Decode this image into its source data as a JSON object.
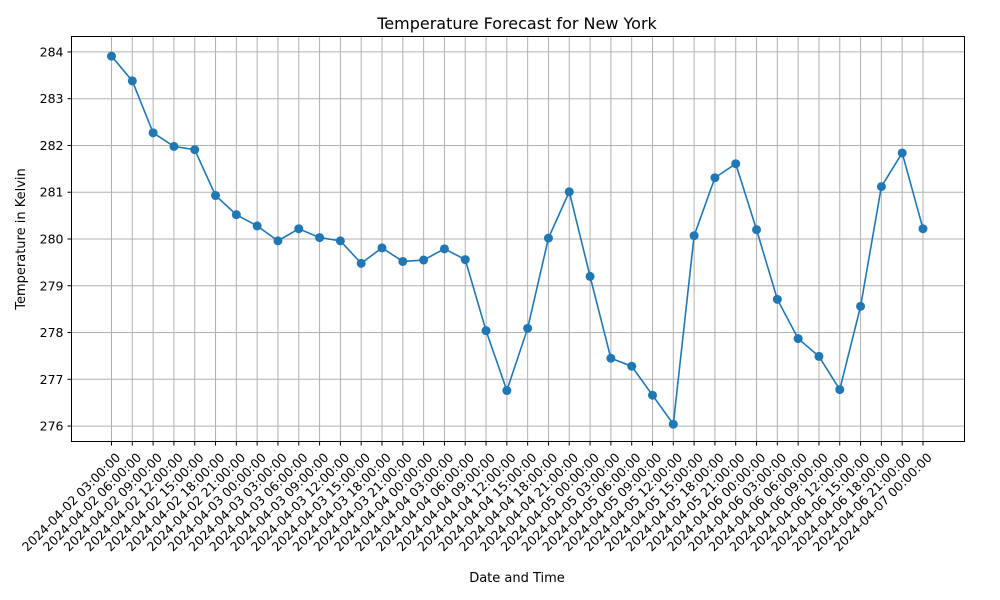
{
  "chart_data": {
    "type": "line",
    "title": "Temperature Forecast for New York",
    "xlabel": "Date and Time",
    "ylabel": "Temperature in Kelvin",
    "ylim": [
      275.67,
      284.33
    ],
    "yticks": [
      276,
      277,
      278,
      279,
      280,
      281,
      282,
      283,
      284
    ],
    "grid": true,
    "marker": "circle",
    "color": "#1f77b4",
    "categories": [
      "2024-04-02 03:00:00",
      "2024-04-02 06:00:00",
      "2024-04-02 09:00:00",
      "2024-04-02 12:00:00",
      "2024-04-02 15:00:00",
      "2024-04-02 18:00:00",
      "2024-04-02 21:00:00",
      "2024-04-03 00:00:00",
      "2024-04-03 03:00:00",
      "2024-04-03 06:00:00",
      "2024-04-03 09:00:00",
      "2024-04-03 12:00:00",
      "2024-04-03 15:00:00",
      "2024-04-03 18:00:00",
      "2024-04-03 21:00:00",
      "2024-04-04 00:00:00",
      "2024-04-04 03:00:00",
      "2024-04-04 06:00:00",
      "2024-04-04 09:00:00",
      "2024-04-04 12:00:00",
      "2024-04-04 15:00:00",
      "2024-04-04 18:00:00",
      "2024-04-04 21:00:00",
      "2024-04-05 00:00:00",
      "2024-04-05 03:00:00",
      "2024-04-05 06:00:00",
      "2024-04-05 09:00:00",
      "2024-04-05 12:00:00",
      "2024-04-05 15:00:00",
      "2024-04-05 18:00:00",
      "2024-04-05 21:00:00",
      "2024-04-06 00:00:00",
      "2024-04-06 03:00:00",
      "2024-04-06 06:00:00",
      "2024-04-06 09:00:00",
      "2024-04-06 12:00:00",
      "2024-04-06 15:00:00",
      "2024-04-06 18:00:00",
      "2024-04-06 21:00:00",
      "2024-04-07 00:00:00"
    ],
    "series": [
      {
        "name": "Temperature",
        "values": [
          283.91,
          283.38,
          282.27,
          281.98,
          281.91,
          280.93,
          280.52,
          280.28,
          279.96,
          280.22,
          280.03,
          279.96,
          279.48,
          279.81,
          279.52,
          279.55,
          279.79,
          279.56,
          278.04,
          276.76,
          278.09,
          280.02,
          281.01,
          279.2,
          277.45,
          277.28,
          276.66,
          276.04,
          280.07,
          281.31,
          281.61,
          280.2,
          278.71,
          277.87,
          277.49,
          276.78,
          278.56,
          281.12,
          281.84,
          280.22
        ]
      }
    ]
  }
}
